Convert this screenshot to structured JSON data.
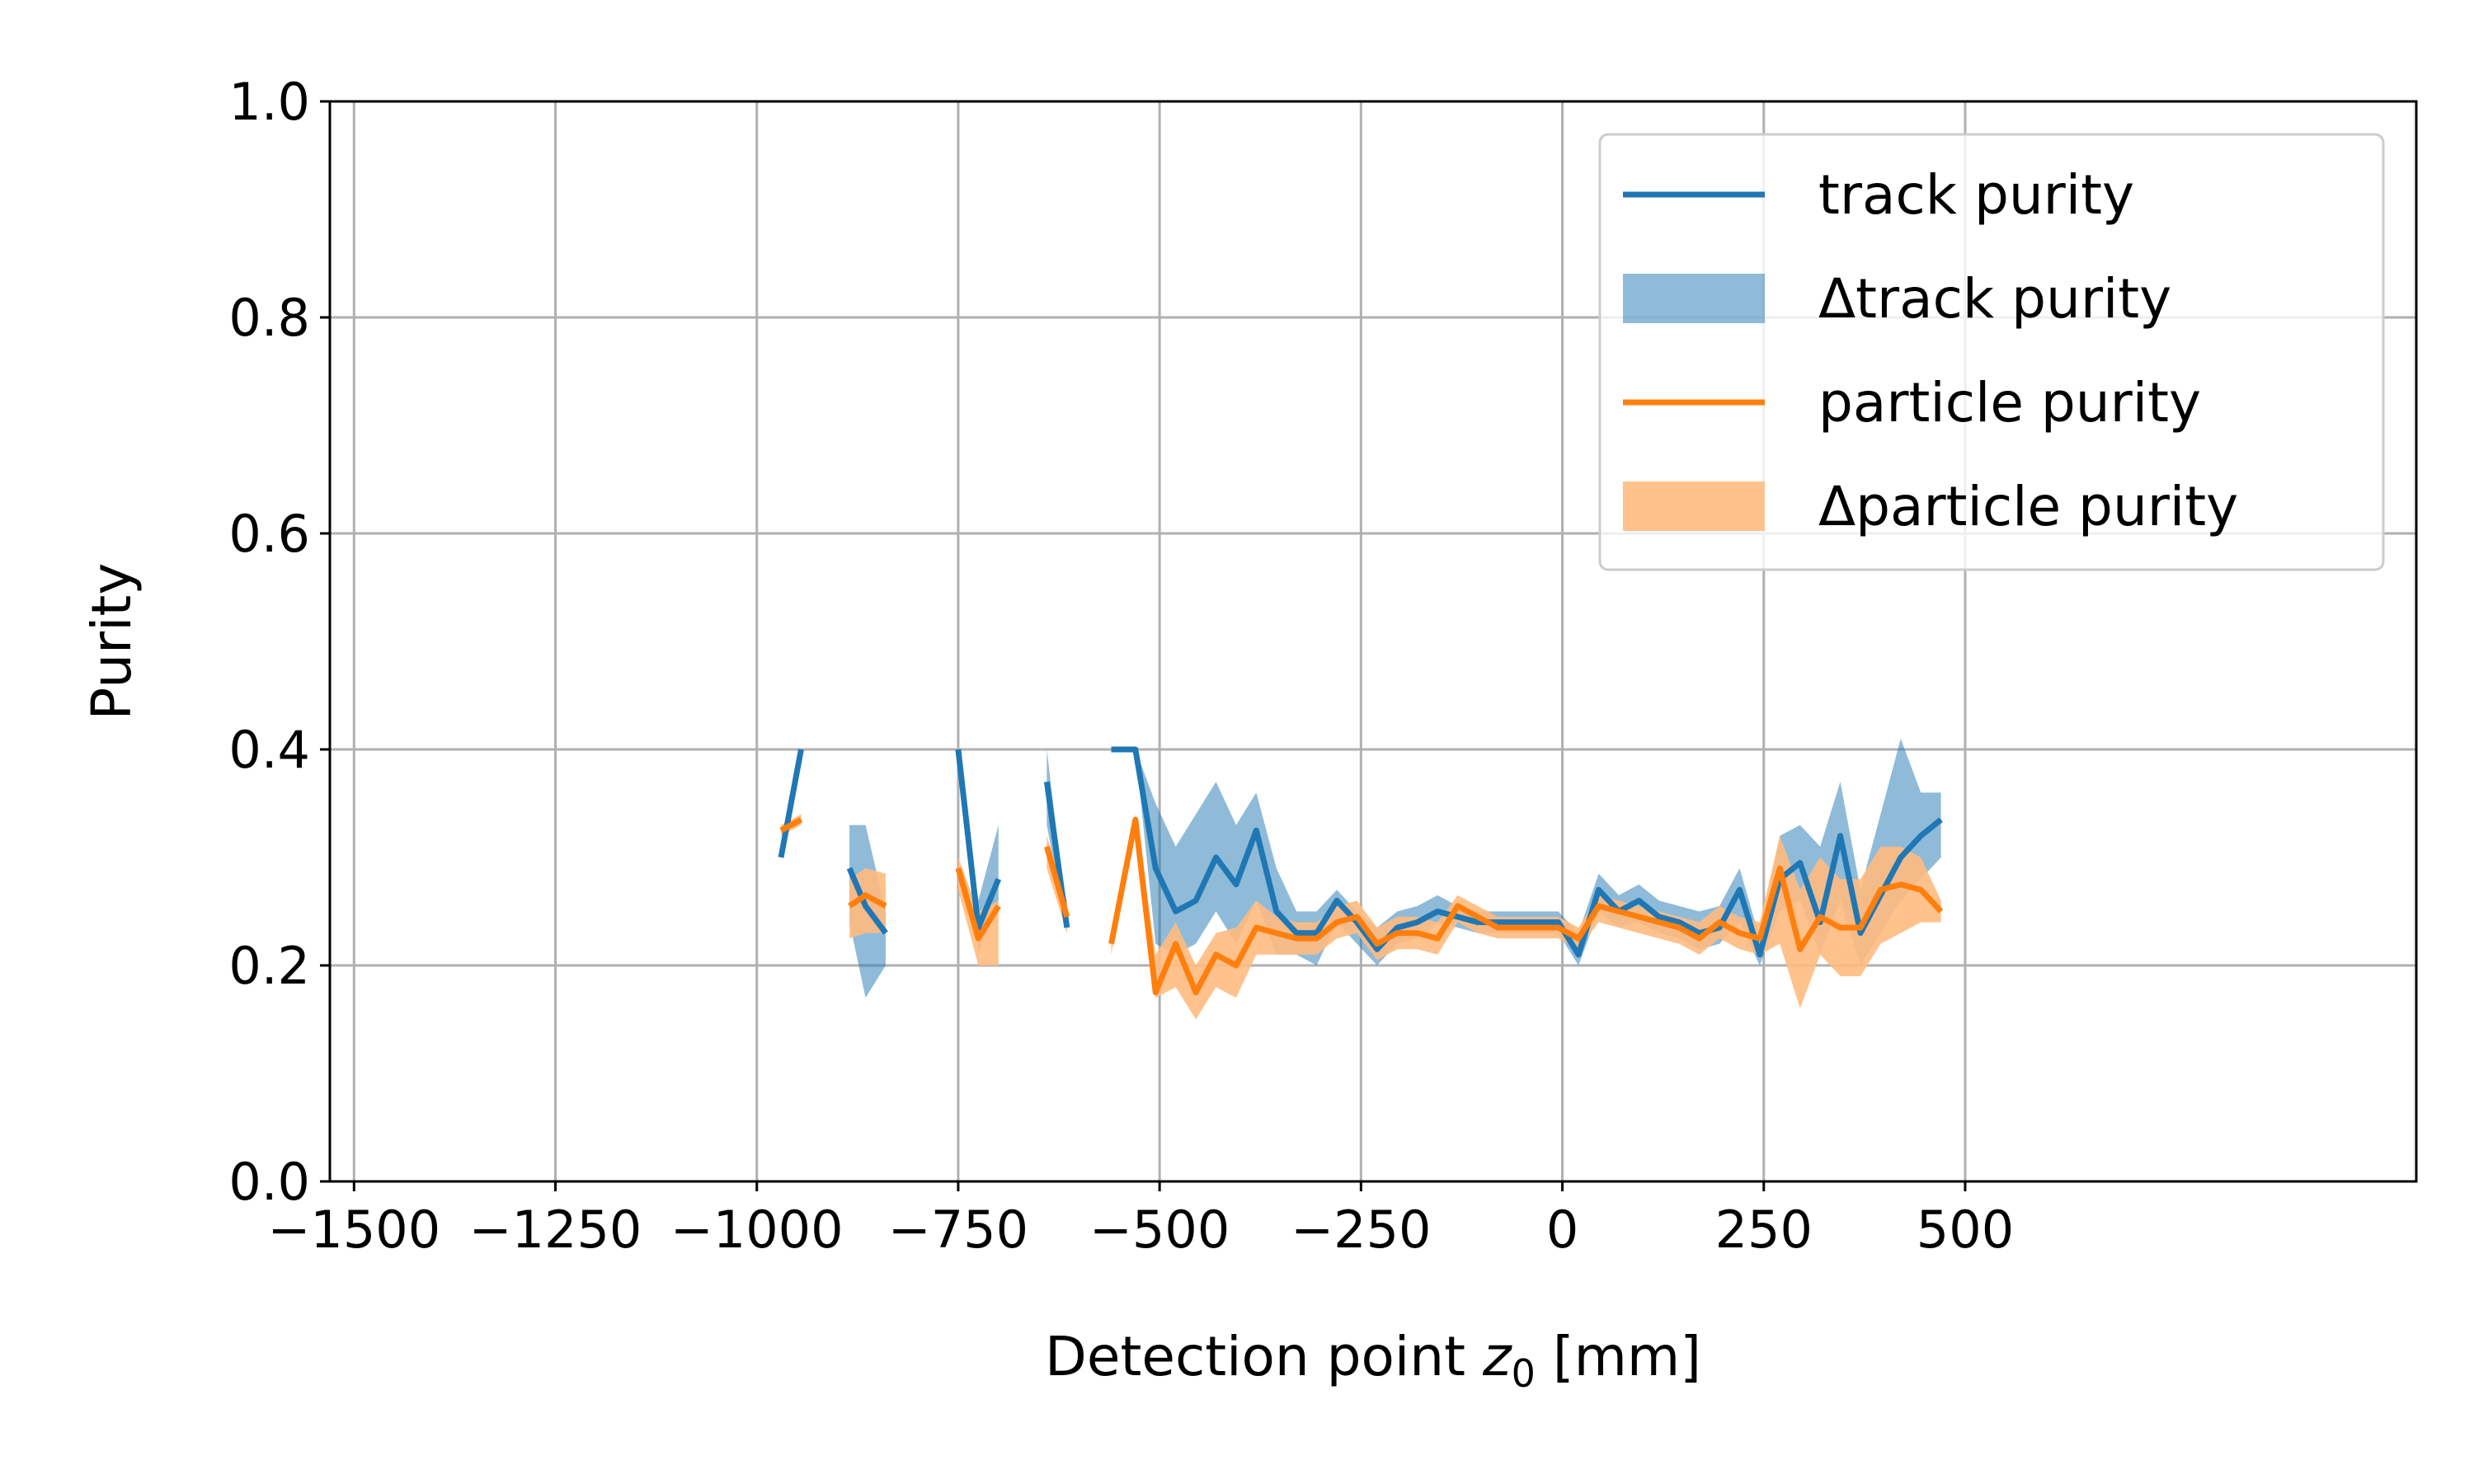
{
  "chart_data": {
    "type": "line",
    "xlabel_prefix": "Detection point ",
    "xlabel_var": "z",
    "xlabel_sub": "0",
    "xlabel_suffix": " [mm]",
    "ylabel": "Purity",
    "xlim": [
      -1530,
      1060
    ],
    "ylim": [
      0.0,
      1.0
    ],
    "xticks": [
      -1500,
      -1250,
      -1000,
      -750,
      -500,
      -250,
      0,
      250,
      500
    ],
    "yticks": [
      0.0,
      0.2,
      0.4,
      0.6,
      0.8,
      1.0
    ],
    "xtick_labels": [
      "−1500",
      "−1250",
      "−1000",
      "−750",
      "−500",
      "−250",
      "0",
      "250",
      "500"
    ],
    "ytick_labels": [
      "0.0",
      "0.2",
      "0.4",
      "0.6",
      "0.8",
      "1.0"
    ],
    "grid": true,
    "legend_position": "top-right",
    "series": [
      {
        "name": "track purity",
        "band_name": "Δtrack purity",
        "color": "#1f77b4",
        "band_color": "#1f77b4",
        "segments": [
          [
            [
              -970,
              0.3
            ],
            [
              -945,
              0.4
            ]
          ],
          [
            [
              -885,
              0.29
            ],
            [
              -865,
              0.255
            ],
            [
              -840,
              0.23
            ]
          ],
          [
            [
              -750,
              0.4
            ],
            [
              -725,
              0.235
            ],
            [
              -700,
              0.28
            ]
          ],
          [
            [
              -640,
              0.37
            ],
            [
              -615,
              0.235
            ]
          ],
          [
            [
              -560,
              0.4
            ],
            [
              -530,
              0.4
            ],
            [
              -505,
              0.29
            ],
            [
              -480,
              0.25
            ],
            [
              -455,
              0.26
            ],
            [
              -430,
              0.3
            ],
            [
              -405,
              0.275
            ],
            [
              -380,
              0.325
            ],
            [
              -355,
              0.25
            ],
            [
              -330,
              0.23
            ],
            [
              -305,
              0.23
            ],
            [
              -280,
              0.26
            ],
            [
              -255,
              0.24
            ],
            [
              -230,
              0.215
            ],
            [
              -205,
              0.235
            ],
            [
              -180,
              0.24
            ],
            [
              -155,
              0.25
            ],
            [
              -130,
              0.245
            ],
            [
              -105,
              0.24
            ],
            [
              -80,
              0.24
            ],
            [
              -55,
              0.24
            ],
            [
              -30,
              0.24
            ],
            [
              -5,
              0.24
            ],
            [
              20,
              0.21
            ],
            [
              45,
              0.27
            ],
            [
              70,
              0.25
            ],
            [
              95,
              0.26
            ],
            [
              120,
              0.245
            ],
            [
              145,
              0.24
            ],
            [
              170,
              0.23
            ],
            [
              195,
              0.235
            ],
            [
              220,
              0.27
            ],
            [
              245,
              0.21
            ],
            [
              270,
              0.28
            ],
            [
              295,
              0.295
            ],
            [
              320,
              0.24
            ],
            [
              345,
              0.32
            ],
            [
              370,
              0.23
            ],
            [
              395,
              0.265
            ],
            [
              420,
              0.3
            ],
            [
              445,
              0.32
            ],
            [
              470,
              0.335
            ]
          ]
        ],
        "band_segments": [
          [
            [
              -970,
              0.3,
              0.3
            ],
            [
              -945,
              0.4,
              0.4
            ]
          ],
          [
            [
              -885,
              0.24,
              0.33
            ],
            [
              -865,
              0.17,
              0.33
            ],
            [
              -840,
              0.2,
              0.25
            ]
          ],
          [
            [
              -750,
              0.4,
              0.4
            ],
            [
              -725,
              0.21,
              0.26
            ],
            [
              -700,
              0.26,
              0.33
            ]
          ],
          [
            [
              -640,
              0.33,
              0.4
            ],
            [
              -615,
              0.23,
              0.24
            ]
          ],
          [
            [
              -560,
              0.4,
              0.4
            ],
            [
              -530,
              0.4,
              0.4
            ],
            [
              -505,
              0.22,
              0.35
            ],
            [
              -480,
              0.21,
              0.31
            ],
            [
              -455,
              0.22,
              0.34
            ],
            [
              -430,
              0.25,
              0.37
            ],
            [
              -405,
              0.22,
              0.33
            ],
            [
              -380,
              0.26,
              0.36
            ],
            [
              -355,
              0.21,
              0.29
            ],
            [
              -330,
              0.21,
              0.25
            ],
            [
              -305,
              0.2,
              0.25
            ],
            [
              -280,
              0.24,
              0.27
            ],
            [
              -255,
              0.22,
              0.25
            ],
            [
              -230,
              0.2,
              0.235
            ],
            [
              -205,
              0.22,
              0.25
            ],
            [
              -180,
              0.225,
              0.255
            ],
            [
              -155,
              0.24,
              0.265
            ],
            [
              -130,
              0.235,
              0.255
            ],
            [
              -105,
              0.23,
              0.25
            ],
            [
              -80,
              0.23,
              0.25
            ],
            [
              -55,
              0.23,
              0.25
            ],
            [
              -30,
              0.23,
              0.25
            ],
            [
              -5,
              0.23,
              0.25
            ],
            [
              20,
              0.2,
              0.23
            ],
            [
              45,
              0.25,
              0.285
            ],
            [
              70,
              0.235,
              0.265
            ],
            [
              95,
              0.24,
              0.275
            ],
            [
              120,
              0.23,
              0.26
            ],
            [
              145,
              0.225,
              0.255
            ],
            [
              170,
              0.215,
              0.25
            ],
            [
              195,
              0.22,
              0.255
            ],
            [
              220,
              0.24,
              0.29
            ],
            [
              245,
              0.2,
              0.225
            ],
            [
              270,
              0.25,
              0.32
            ],
            [
              295,
              0.26,
              0.33
            ],
            [
              320,
              0.21,
              0.31
            ],
            [
              345,
              0.26,
              0.37
            ],
            [
              370,
              0.2,
              0.27
            ],
            [
              395,
              0.23,
              0.34
            ],
            [
              420,
              0.26,
              0.41
            ],
            [
              445,
              0.28,
              0.36
            ],
            [
              470,
              0.3,
              0.36
            ]
          ]
        ]
      },
      {
        "name": "particle purity",
        "band_name": "Δparticle purity",
        "color": "#ff7f0e",
        "band_color": "#ffbb80",
        "segments": [
          [
            [
              -970,
              0.325
            ],
            [
              -945,
              0.335
            ]
          ],
          [
            [
              -885,
              0.255
            ],
            [
              -865,
              0.265
            ],
            [
              -840,
              0.255
            ]
          ],
          [
            [
              -750,
              0.29
            ],
            [
              -725,
              0.225
            ],
            [
              -700,
              0.255
            ]
          ],
          [
            [
              -640,
              0.31
            ],
            [
              -615,
              0.245
            ]
          ],
          [
            [
              -560,
              0.22
            ],
            [
              -530,
              0.335
            ],
            [
              -505,
              0.175
            ],
            [
              -480,
              0.22
            ],
            [
              -455,
              0.175
            ],
            [
              -430,
              0.21
            ],
            [
              -405,
              0.2
            ],
            [
              -380,
              0.235
            ],
            [
              -355,
              0.23
            ],
            [
              -330,
              0.225
            ],
            [
              -305,
              0.225
            ],
            [
              -280,
              0.24
            ],
            [
              -255,
              0.245
            ],
            [
              -230,
              0.22
            ],
            [
              -205,
              0.23
            ],
            [
              -180,
              0.23
            ],
            [
              -155,
              0.225
            ],
            [
              -130,
              0.255
            ],
            [
              -105,
              0.245
            ],
            [
              -80,
              0.235
            ],
            [
              -55,
              0.235
            ],
            [
              -30,
              0.235
            ],
            [
              -5,
              0.235
            ],
            [
              20,
              0.225
            ],
            [
              45,
              0.255
            ],
            [
              70,
              0.25
            ],
            [
              95,
              0.245
            ],
            [
              120,
              0.24
            ],
            [
              145,
              0.235
            ],
            [
              170,
              0.225
            ],
            [
              195,
              0.24
            ],
            [
              220,
              0.23
            ],
            [
              245,
              0.225
            ],
            [
              270,
              0.29
            ],
            [
              295,
              0.215
            ],
            [
              320,
              0.245
            ],
            [
              345,
              0.235
            ],
            [
              370,
              0.235
            ],
            [
              395,
              0.27
            ],
            [
              420,
              0.275
            ],
            [
              445,
              0.27
            ],
            [
              470,
              0.25
            ]
          ]
        ],
        "band_segments": [
          [
            [
              -970,
              0.32,
              0.33
            ],
            [
              -945,
              0.33,
              0.34
            ]
          ],
          [
            [
              -885,
              0.225,
              0.28
            ],
            [
              -865,
              0.23,
              0.29
            ],
            [
              -840,
              0.23,
              0.285
            ]
          ],
          [
            [
              -750,
              0.27,
              0.3
            ],
            [
              -725,
              0.2,
              0.25
            ],
            [
              -700,
              0.2,
              0.26
            ]
          ],
          [
            [
              -640,
              0.29,
              0.32
            ],
            [
              -615,
              0.23,
              0.26
            ]
          ],
          [
            [
              -560,
              0.21,
              0.23
            ],
            [
              -530,
              0.33,
              0.34
            ],
            [
              -505,
              0.17,
              0.21
            ],
            [
              -480,
              0.18,
              0.24
            ],
            [
              -455,
              0.15,
              0.2
            ],
            [
              -430,
              0.18,
              0.23
            ],
            [
              -405,
              0.17,
              0.235
            ],
            [
              -380,
              0.21,
              0.26
            ],
            [
              -355,
              0.21,
              0.245
            ],
            [
              -330,
              0.21,
              0.24
            ],
            [
              -305,
              0.21,
              0.24
            ],
            [
              -280,
              0.225,
              0.255
            ],
            [
              -255,
              0.23,
              0.26
            ],
            [
              -230,
              0.205,
              0.235
            ],
            [
              -205,
              0.215,
              0.245
            ],
            [
              -180,
              0.215,
              0.245
            ],
            [
              -155,
              0.21,
              0.24
            ],
            [
              -130,
              0.24,
              0.265
            ],
            [
              -105,
              0.23,
              0.255
            ],
            [
              -80,
              0.225,
              0.245
            ],
            [
              -55,
              0.225,
              0.245
            ],
            [
              -30,
              0.225,
              0.245
            ],
            [
              -5,
              0.225,
              0.245
            ],
            [
              20,
              0.215,
              0.235
            ],
            [
              45,
              0.24,
              0.265
            ],
            [
              70,
              0.235,
              0.26
            ],
            [
              95,
              0.23,
              0.255
            ],
            [
              120,
              0.225,
              0.25
            ],
            [
              145,
              0.22,
              0.245
            ],
            [
              170,
              0.21,
              0.24
            ],
            [
              195,
              0.225,
              0.255
            ],
            [
              220,
              0.215,
              0.245
            ],
            [
              245,
              0.21,
              0.24
            ],
            [
              270,
              0.22,
              0.32
            ],
            [
              295,
              0.16,
              0.27
            ],
            [
              320,
              0.21,
              0.3
            ],
            [
              345,
              0.19,
              0.28
            ],
            [
              370,
              0.19,
              0.28
            ],
            [
              395,
              0.22,
              0.31
            ],
            [
              420,
              0.23,
              0.31
            ],
            [
              445,
              0.24,
              0.3
            ],
            [
              470,
              0.24,
              0.26
            ]
          ]
        ]
      }
    ]
  }
}
